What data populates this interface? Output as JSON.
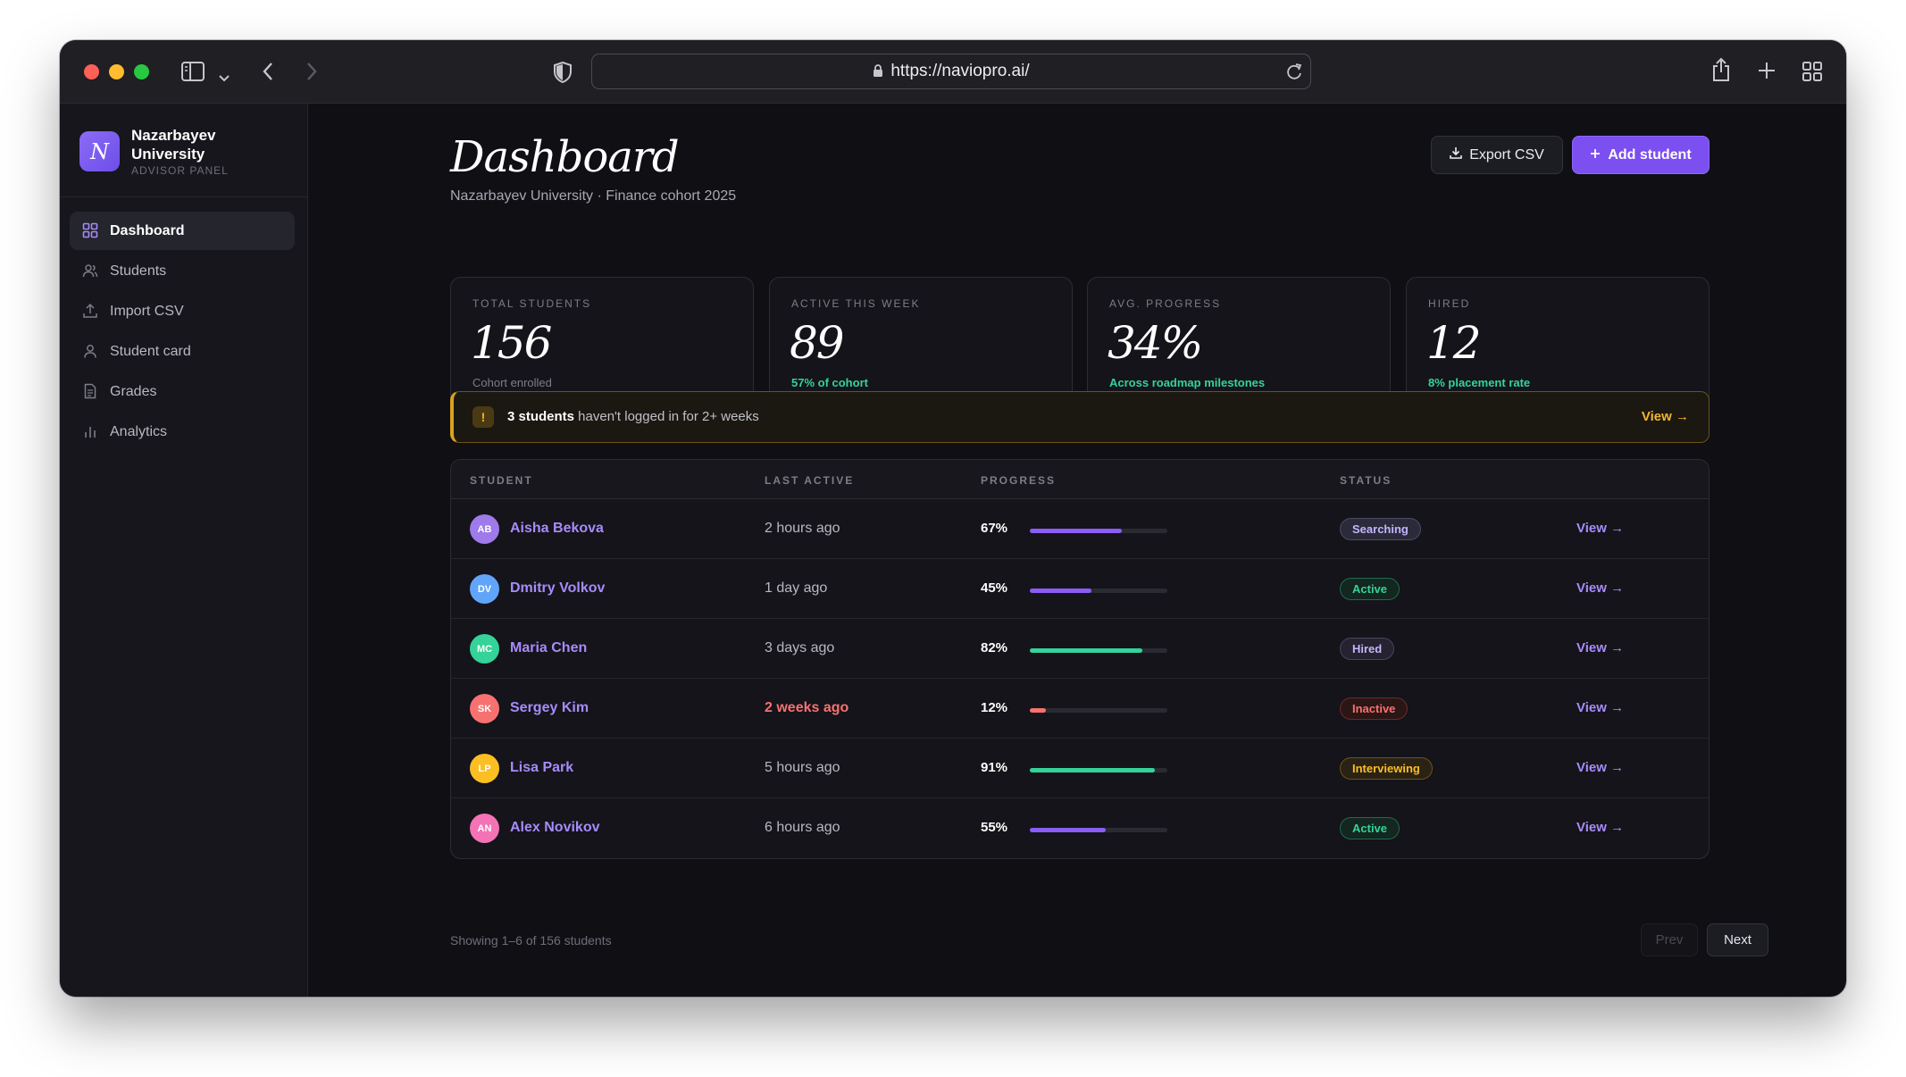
{
  "browser": {
    "url": "https://naviopro.ai/"
  },
  "sidebar": {
    "org_initial": "N",
    "org_name": "Nazarbayev University",
    "org_subtitle": "ADVISOR PANEL",
    "items": [
      {
        "label": "Dashboard",
        "icon": "grid-icon",
        "active": true
      },
      {
        "label": "Students",
        "icon": "users-icon",
        "active": false
      },
      {
        "label": "Import CSV",
        "icon": "upload-icon",
        "active": false
      },
      {
        "label": "Student card",
        "icon": "user-icon",
        "active": false
      },
      {
        "label": "Grades",
        "icon": "document-icon",
        "active": false
      },
      {
        "label": "Analytics",
        "icon": "bar-chart-icon",
        "active": false
      }
    ]
  },
  "header": {
    "title": "Dashboard",
    "subtitle": "Nazarbayev University · Finance cohort 2025",
    "export_label": "Export CSV",
    "add_label": "Add student"
  },
  "stats": [
    {
      "label": "TOTAL STUDENTS",
      "value": "156",
      "note": "Cohort enrolled",
      "highlight": false
    },
    {
      "label": "ACTIVE THIS WEEK",
      "value": "89",
      "note": "57% of cohort",
      "highlight": true
    },
    {
      "label": "AVG. PROGRESS",
      "value": "34%",
      "note": "Across roadmap milestones",
      "highlight": true
    },
    {
      "label": "HIRED",
      "value": "12",
      "note": "8% placement rate",
      "highlight": true
    }
  ],
  "alert": {
    "icon": "!",
    "bold": "3 students",
    "text": " haven't logged in for 2+ weeks",
    "link": "View →"
  },
  "table": {
    "headers": [
      "STUDENT",
      "LAST ACTIVE",
      "PROGRESS",
      "STATUS"
    ],
    "rows": [
      {
        "initials": "AB",
        "name": "Aisha Bekova",
        "last_active": "2 hours ago",
        "progress": 67,
        "progress_label": "67%",
        "status": "Searching",
        "link": "View →"
      },
      {
        "initials": "DV",
        "name": "Dmitry Volkov",
        "last_active": "1 day ago",
        "progress": 45,
        "progress_label": "45%",
        "status": "Active",
        "link": "View →"
      },
      {
        "initials": "MC",
        "name": "Maria Chen",
        "last_active": "3 days ago",
        "progress": 82,
        "progress_label": "82%",
        "status": "Hired",
        "link": "View →"
      },
      {
        "initials": "SK",
        "name": "Sergey Kim",
        "last_active": "2 weeks ago",
        "progress": 12,
        "progress_label": "12%",
        "status": "Inactive",
        "link": "View →"
      },
      {
        "initials": "LP",
        "name": "Lisa Park",
        "last_active": "5 hours ago",
        "progress": 91,
        "progress_label": "91%",
        "status": "Interviewing",
        "link": "View →"
      },
      {
        "initials": "AN",
        "name": "Alex Novikov",
        "last_active": "6 hours ago",
        "progress": 55,
        "progress_label": "55%",
        "status": "Active",
        "link": "View →"
      }
    ]
  },
  "footer": {
    "summary": "Showing 1–6 of 156 students",
    "prev_label": "Prev",
    "next_label": "Next"
  },
  "colors": {
    "accent": "#7c4ff0",
    "progress_purple": "#8b5cf6",
    "progress_green": "#34d399",
    "progress_red": "#f87171",
    "warning": "#f2b52e"
  }
}
